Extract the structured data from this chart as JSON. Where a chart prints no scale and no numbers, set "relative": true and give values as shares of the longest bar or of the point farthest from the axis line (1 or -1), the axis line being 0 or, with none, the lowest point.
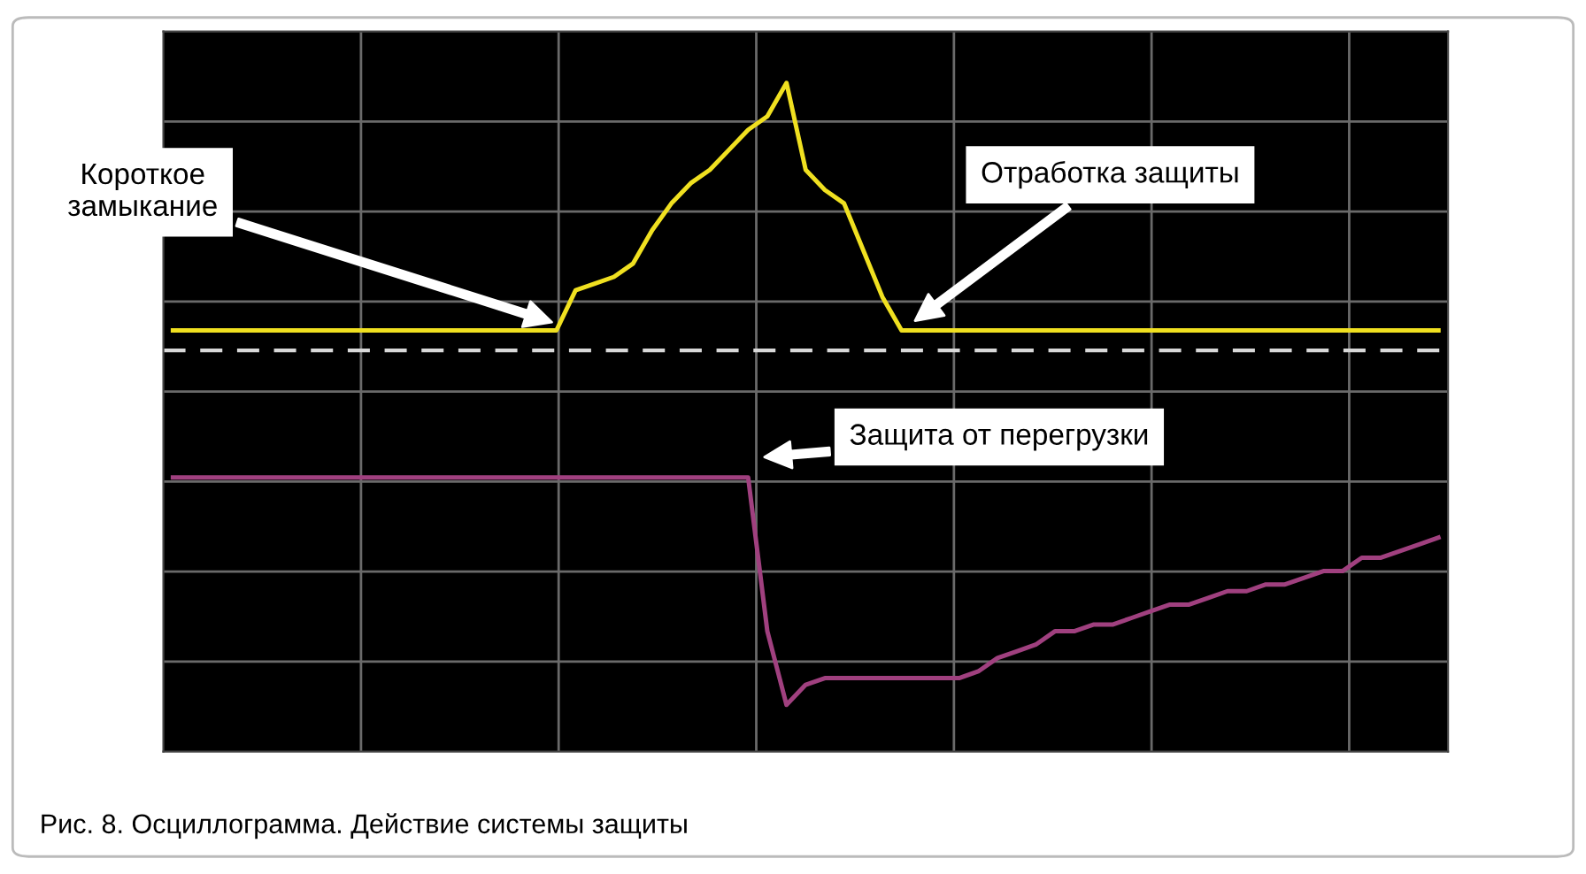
{
  "chart_data": {
    "type": "line",
    "relative": true,
    "grid": true,
    "tick_labels": false,
    "legend": false,
    "line_style": "solid",
    "marker": "none",
    "categories": [
      null,
      null,
      null,
      null,
      null,
      null,
      null,
      null,
      null,
      null,
      null,
      null,
      null,
      null,
      null,
      null,
      null,
      null,
      null,
      null,
      null,
      null,
      null,
      null,
      null,
      null,
      null,
      null,
      null,
      null,
      null,
      null,
      null,
      null,
      null,
      null,
      null,
      null,
      null,
      null,
      null,
      null,
      null,
      null,
      null,
      null,
      null,
      null,
      null,
      null,
      null,
      null,
      null,
      null,
      null,
      null,
      null,
      null,
      null,
      null,
      null,
      null,
      null,
      null,
      null,
      null,
      null
    ],
    "series": [
      {
        "color": "#f0e020",
        "values": [
          0.63,
          0.63,
          0.63,
          0.63,
          0.63,
          0.63,
          0.63,
          0.63,
          0.63,
          0.63,
          0.63,
          0.63,
          0.63,
          0.63,
          0.63,
          0.63,
          0.63,
          0.63,
          0.63,
          0.63,
          0.63,
          0.69,
          0.7,
          0.71,
          0.73,
          0.78,
          0.82,
          0.85,
          0.87,
          0.9,
          0.93,
          0.95,
          1.0,
          0.87,
          0.84,
          0.82,
          0.75,
          0.68,
          0.63,
          0.63,
          0.63,
          0.63,
          0.63,
          0.63,
          0.63,
          0.63,
          0.63,
          0.63,
          0.63,
          0.63,
          0.63,
          0.63,
          0.63,
          0.63,
          0.63,
          0.63,
          0.63,
          0.63,
          0.63,
          0.63,
          0.63,
          0.63,
          0.63,
          0.63,
          0.63,
          0.63,
          0.63
        ]
      },
      {
        "color": "#a0407f",
        "values": [
          0.41,
          0.41,
          0.41,
          0.41,
          0.41,
          0.41,
          0.41,
          0.41,
          0.41,
          0.41,
          0.41,
          0.41,
          0.41,
          0.41,
          0.41,
          0.41,
          0.41,
          0.41,
          0.41,
          0.41,
          0.41,
          0.41,
          0.41,
          0.41,
          0.41,
          0.41,
          0.41,
          0.41,
          0.41,
          0.41,
          0.41,
          0.18,
          0.07,
          0.1,
          0.11,
          0.11,
          0.11,
          0.11,
          0.11,
          0.11,
          0.11,
          0.11,
          0.12,
          0.14,
          0.15,
          0.16,
          0.18,
          0.18,
          0.19,
          0.19,
          0.2,
          0.21,
          0.22,
          0.22,
          0.23,
          0.24,
          0.24,
          0.25,
          0.25,
          0.26,
          0.27,
          0.27,
          0.29,
          0.29,
          0.3,
          0.31,
          0.32
        ]
      }
    ],
    "ref_lines": [
      {
        "axis": "y",
        "value": 0.6,
        "color": "#d8d8d8",
        "line_style": "dashed"
      }
    ],
    "annotations": [
      "Короткое\nзамыкание",
      "Отработка защиты",
      "Защита от перегрузки",
      "Рис. 8. Осциллограмма. Действие системы защиты"
    ]
  }
}
